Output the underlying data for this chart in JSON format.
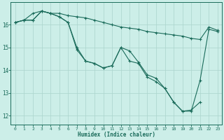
{
  "xlabel": "Humidex (Indice chaleur)",
  "bg_color": "#cceee8",
  "grid_color": "#aad4cc",
  "line_color": "#1a6b5a",
  "x_ticks": [
    0,
    1,
    2,
    3,
    4,
    5,
    6,
    7,
    8,
    9,
    10,
    11,
    12,
    13,
    14,
    15,
    16,
    17,
    18,
    19,
    20,
    21,
    22,
    23
  ],
  "y_ticks": [
    12,
    13,
    14,
    15,
    16
  ],
  "ylim": [
    11.6,
    17.0
  ],
  "xlim": [
    -0.5,
    23.5
  ],
  "series1_x": [
    0,
    1,
    2,
    3,
    4,
    5,
    6,
    7,
    8,
    9,
    10,
    11,
    12,
    13,
    14,
    15,
    16,
    17,
    18,
    19,
    20,
    21,
    22,
    23
  ],
  "series1_y": [
    16.1,
    16.2,
    16.5,
    16.6,
    16.5,
    16.5,
    16.4,
    16.35,
    16.3,
    16.2,
    16.1,
    16.0,
    15.9,
    15.85,
    15.8,
    15.7,
    15.65,
    15.6,
    15.55,
    15.5,
    15.4,
    15.35,
    15.9,
    15.75
  ],
  "series2_x": [
    0,
    1,
    2,
    3,
    4,
    5,
    6,
    7,
    8,
    9,
    10,
    11,
    12,
    13,
    14,
    15,
    16,
    17,
    18,
    19,
    20,
    21
  ],
  "series2_y": [
    16.1,
    16.2,
    16.2,
    16.6,
    16.5,
    16.35,
    16.1,
    15.0,
    14.4,
    14.3,
    14.1,
    14.2,
    15.0,
    14.4,
    14.3,
    13.7,
    13.5,
    13.2,
    12.6,
    12.2,
    12.25,
    12.6
  ],
  "series3_x": [
    0,
    1,
    2,
    3,
    4,
    5,
    6,
    7,
    8,
    9,
    10,
    11,
    12,
    13,
    14,
    15,
    16,
    17,
    18,
    19,
    20,
    21,
    22,
    23
  ],
  "series3_y": [
    16.1,
    16.2,
    16.2,
    16.6,
    16.5,
    16.35,
    16.1,
    14.9,
    14.4,
    14.3,
    14.1,
    14.2,
    15.0,
    14.85,
    14.35,
    13.8,
    13.65,
    13.2,
    12.6,
    12.2,
    12.2,
    13.55,
    15.8,
    15.7
  ]
}
